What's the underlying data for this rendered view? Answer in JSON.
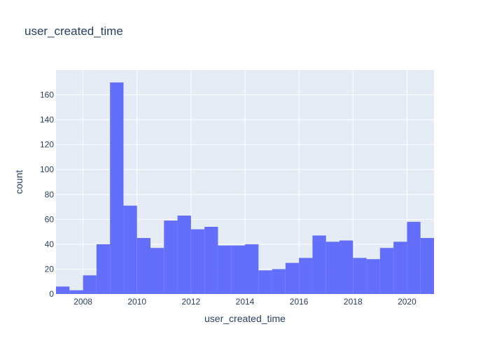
{
  "chart_data": {
    "type": "bar",
    "title": "user_created_time",
    "xlabel": "user_created_time",
    "ylabel": "count",
    "xlim": [
      2007.0,
      2021.0
    ],
    "ylim": [
      0,
      180
    ],
    "bin_width": 0.5,
    "x_ticks": [
      2008,
      2010,
      2012,
      2014,
      2016,
      2018,
      2020
    ],
    "y_ticks": [
      0,
      20,
      40,
      60,
      80,
      100,
      120,
      140,
      160
    ],
    "grid": true,
    "legend": "none",
    "bar_color": "#636efa",
    "plot_bg": "#e5ecf6",
    "bins": [
      2007.0,
      2007.5,
      2008.0,
      2008.5,
      2009.0,
      2009.5,
      2010.0,
      2010.5,
      2011.0,
      2011.5,
      2012.0,
      2012.5,
      2013.0,
      2013.5,
      2014.0,
      2014.5,
      2015.0,
      2015.5,
      2016.0,
      2016.5,
      2017.0,
      2017.5,
      2018.0,
      2018.5,
      2019.0,
      2019.5,
      2020.0,
      2020.5
    ],
    "values": [
      6,
      3,
      15,
      40,
      170,
      71,
      45,
      37,
      59,
      63,
      52,
      54,
      39,
      39,
      40,
      19,
      20,
      25,
      29,
      47,
      42,
      43,
      29,
      28,
      37,
      42,
      58,
      45
    ]
  }
}
